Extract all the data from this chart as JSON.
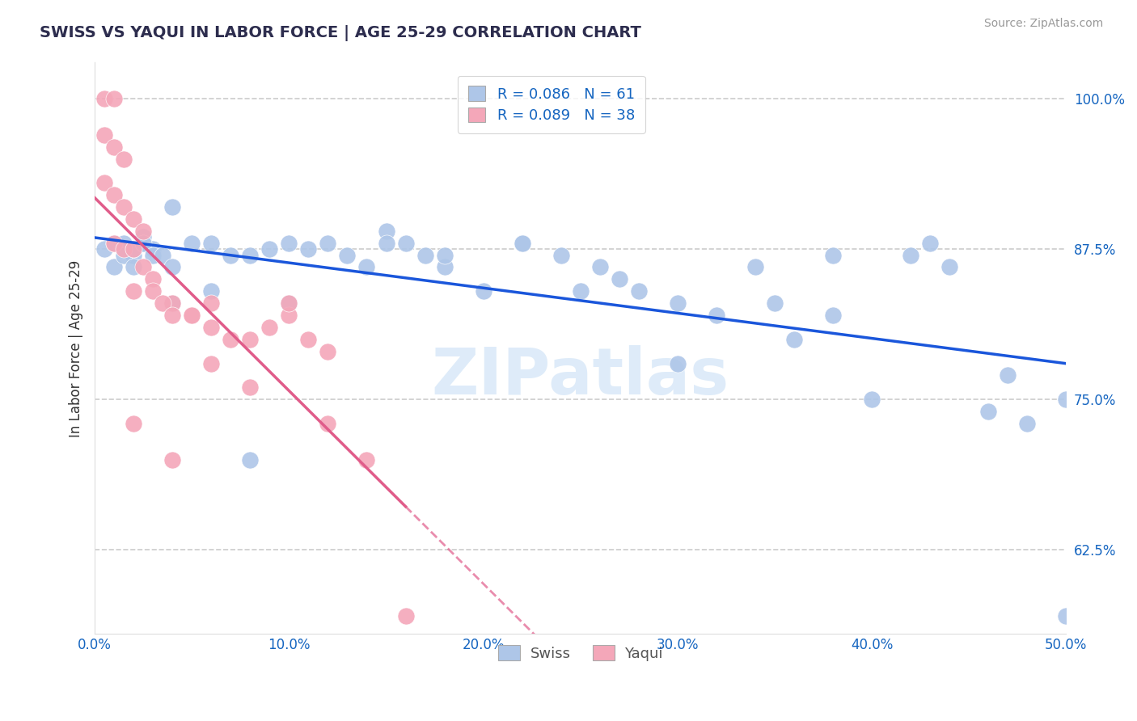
{
  "title": "SWISS VS YAQUI IN LABOR FORCE | AGE 25-29 CORRELATION CHART",
  "source_text": "Source: ZipAtlas.com",
  "ylabel": "In Labor Force | Age 25-29",
  "xlim": [
    0.0,
    0.5
  ],
  "ylim": [
    0.555,
    1.03
  ],
  "xtick_labels": [
    "0.0%",
    "10.0%",
    "20.0%",
    "30.0%",
    "40.0%",
    "50.0%"
  ],
  "xtick_values": [
    0.0,
    0.1,
    0.2,
    0.3,
    0.4,
    0.5
  ],
  "ytick_labels": [
    "62.5%",
    "75.0%",
    "87.5%",
    "100.0%"
  ],
  "ytick_values": [
    0.625,
    0.75,
    0.875,
    1.0
  ],
  "swiss_R": 0.086,
  "swiss_N": 61,
  "yaqui_R": 0.089,
  "yaqui_N": 38,
  "swiss_color": "#aec6e8",
  "yaqui_color": "#f4a7b9",
  "swiss_line_color": "#1a56db",
  "yaqui_line_color": "#e05c8a",
  "legend_text_color": "#1565c0",
  "watermark_color": "#c8dff5",
  "swiss_x": [
    0.005,
    0.01,
    0.015,
    0.02,
    0.025,
    0.01,
    0.015,
    0.02,
    0.025,
    0.03,
    0.02,
    0.025,
    0.03,
    0.035,
    0.04,
    0.04,
    0.05,
    0.06,
    0.07,
    0.08,
    0.09,
    0.1,
    0.11,
    0.12,
    0.13,
    0.14,
    0.15,
    0.16,
    0.17,
    0.18,
    0.2,
    0.22,
    0.24,
    0.26,
    0.28,
    0.3,
    0.32,
    0.34,
    0.36,
    0.38,
    0.4,
    0.42,
    0.44,
    0.46,
    0.48,
    0.5,
    0.25,
    0.27,
    0.3,
    0.35,
    0.38,
    0.43,
    0.47,
    0.5,
    0.22,
    0.18,
    0.15,
    0.1,
    0.08,
    0.06,
    0.04
  ],
  "swiss_y": [
    0.875,
    0.88,
    0.88,
    0.87,
    0.885,
    0.86,
    0.87,
    0.875,
    0.88,
    0.875,
    0.86,
    0.88,
    0.87,
    0.87,
    0.86,
    0.91,
    0.88,
    0.88,
    0.87,
    0.87,
    0.875,
    0.88,
    0.875,
    0.88,
    0.87,
    0.86,
    0.89,
    0.88,
    0.87,
    0.86,
    0.84,
    0.88,
    0.87,
    0.86,
    0.84,
    0.83,
    0.82,
    0.86,
    0.8,
    0.87,
    0.75,
    0.87,
    0.86,
    0.74,
    0.73,
    0.57,
    0.84,
    0.85,
    0.78,
    0.83,
    0.82,
    0.88,
    0.77,
    0.75,
    0.88,
    0.87,
    0.88,
    0.83,
    0.7,
    0.84,
    0.83
  ],
  "yaqui_x": [
    0.005,
    0.01,
    0.005,
    0.01,
    0.015,
    0.005,
    0.01,
    0.015,
    0.02,
    0.025,
    0.01,
    0.015,
    0.02,
    0.025,
    0.03,
    0.02,
    0.03,
    0.04,
    0.05,
    0.06,
    0.035,
    0.04,
    0.05,
    0.06,
    0.07,
    0.08,
    0.09,
    0.1,
    0.11,
    0.12,
    0.02,
    0.04,
    0.06,
    0.08,
    0.1,
    0.12,
    0.14,
    0.16
  ],
  "yaqui_y": [
    1.0,
    1.0,
    0.97,
    0.96,
    0.95,
    0.93,
    0.92,
    0.91,
    0.9,
    0.89,
    0.88,
    0.875,
    0.875,
    0.86,
    0.85,
    0.84,
    0.84,
    0.83,
    0.82,
    0.78,
    0.83,
    0.82,
    0.82,
    0.81,
    0.8,
    0.8,
    0.81,
    0.82,
    0.8,
    0.79,
    0.73,
    0.7,
    0.83,
    0.76,
    0.83,
    0.73,
    0.7,
    0.57
  ]
}
